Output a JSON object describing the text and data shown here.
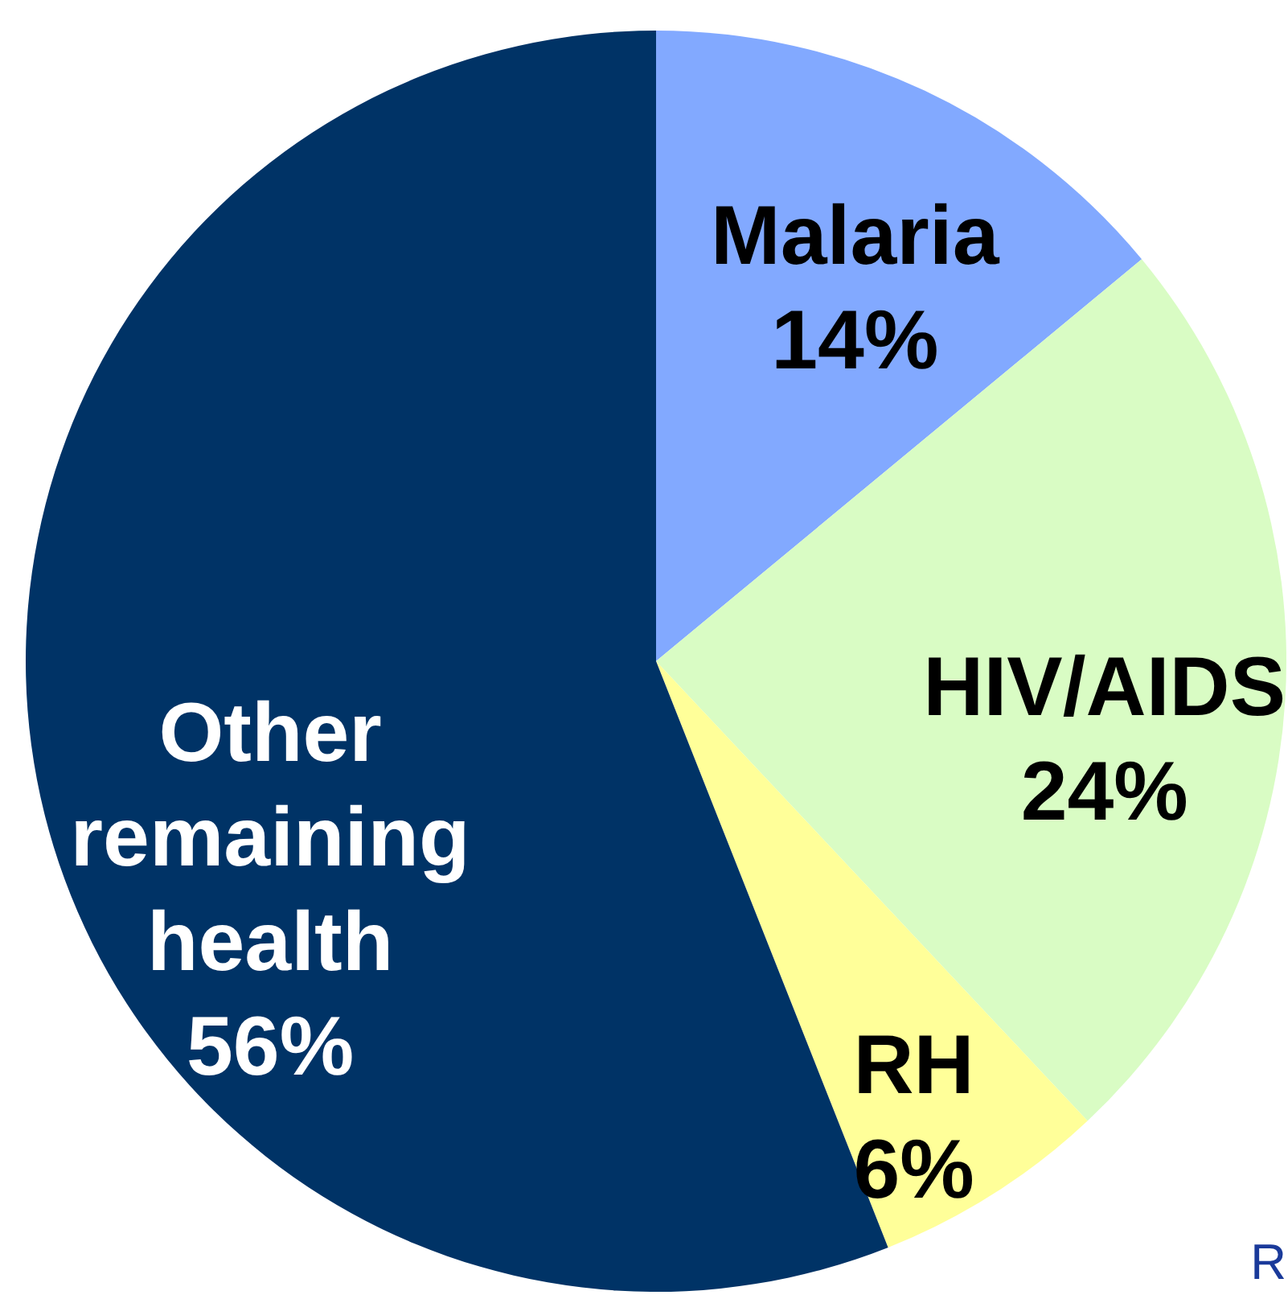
{
  "chart_data": {
    "type": "pie",
    "categories": [
      "Malaria",
      "HIV/AIDS",
      "RH",
      "Other remaining health"
    ],
    "values": [
      14,
      24,
      6,
      56
    ],
    "colors": [
      "#82a9ff",
      "#d9fcc4",
      "#ffff99",
      "#003366"
    ],
    "value_labels": [
      "14%",
      "24%",
      "6%",
      "56%"
    ],
    "annotations": [
      "R"
    ]
  }
}
